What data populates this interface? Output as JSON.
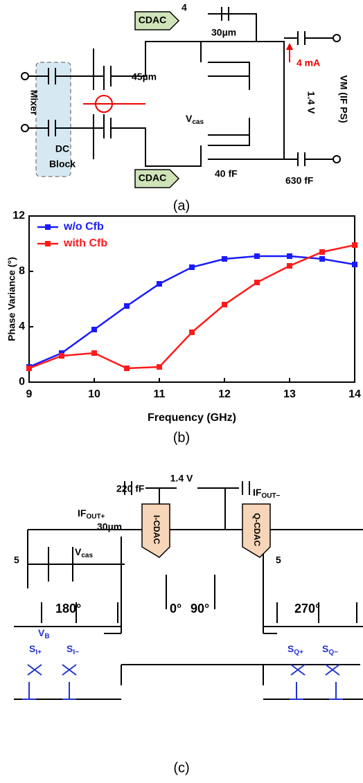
{
  "fig_a": {
    "cdac_top": "CDAC",
    "bits_top": "4",
    "cap_top": "30µm",
    "m_in": "45µm",
    "current": "4 mA",
    "vm": "VM (IF PS)",
    "vdd": "1.4 V",
    "mixer": "Mixer",
    "dc": "DC",
    "block": "Block",
    "vcas": {
      "main": "V",
      "sub": "cas"
    },
    "cdac_bottom": "CDAC",
    "cap_bottom": "40 fF",
    "cap_out": "630 fF",
    "caption": "(a)"
  },
  "chart_data": {
    "type": "line",
    "y_label": "Phase Variance (°)",
    "x_label": "Frequency (GHz)",
    "caption": "(b)",
    "x": [
      9,
      9.5,
      10,
      10.5,
      11,
      11.5,
      12,
      12.5,
      13,
      13.5,
      14
    ],
    "series": [
      {
        "name": "w/o Cfb",
        "color": "#1a1aff",
        "values": [
          1.1,
          2.1,
          3.8,
          5.5,
          7.1,
          8.3,
          8.9,
          9.1,
          9.1,
          8.9,
          8.5
        ]
      },
      {
        "name": "with Cfb",
        "color": "#ff1a1a",
        "values": [
          1.0,
          1.9,
          2.1,
          1.0,
          1.1,
          3.6,
          5.6,
          7.2,
          8.4,
          9.4,
          9.9
        ]
      }
    ],
    "xlim": [
      9,
      14
    ],
    "xticks": [
      9,
      10,
      11,
      12,
      13,
      14
    ],
    "ylim": [
      0,
      12
    ],
    "yticks": [
      0,
      4,
      8,
      12
    ],
    "legend": "upper left"
  },
  "fig_c": {
    "vdd": "1.4 V",
    "cap": "220 fF",
    "ifp": {
      "main": "IF",
      "sub": "OUT+"
    },
    "ifn": {
      "main": "IF",
      "sub": "OUT−"
    },
    "m_cas": "30µm",
    "vcas": {
      "main": "V",
      "sub": "cas"
    },
    "icdac": "I-CDAC",
    "qcdac": "Q-CDAC",
    "bits_l": "5",
    "bits_r": "5",
    "p180": "180°",
    "p0": "0°",
    "p90": "90°",
    "p270": "270°",
    "vb": {
      "main": "V",
      "sub": "B"
    },
    "si_p": {
      "main": "S",
      "sub": "I+"
    },
    "si_n": {
      "main": "S",
      "sub": "I−"
    },
    "sq_p": {
      "main": "S",
      "sub": "Q+"
    },
    "sq_n": {
      "main": "S",
      "sub": "Q−"
    },
    "caption": "(c)"
  }
}
